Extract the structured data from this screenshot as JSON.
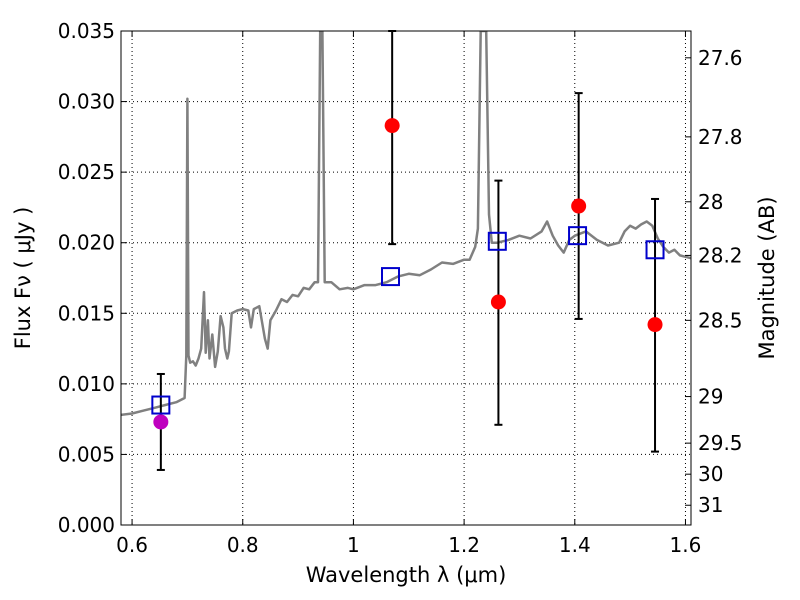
{
  "chart_data": {
    "type": "scatter",
    "xlabel": "Wavelength  λ (μm)",
    "ylabel": "Flux  Fν  ( μJy )",
    "ylabel_right": "Magnitude (AB)",
    "xlim": [
      0.58,
      1.61
    ],
    "ylim": [
      0.0,
      0.035
    ],
    "grid": true,
    "x_ticks": [
      0.6,
      0.8,
      1.0,
      1.2,
      1.4,
      1.6
    ],
    "x_tick_labels": [
      "0.6",
      "0.8",
      "1",
      "1.2",
      "1.4",
      "1.6"
    ],
    "y_ticks": [
      0.0,
      0.005,
      0.01,
      0.015,
      0.02,
      0.025,
      0.03,
      0.035
    ],
    "y_tick_labels": [
      "0.000",
      "0.005",
      "0.010",
      "0.015",
      "0.020",
      "0.025",
      "0.030",
      "0.035"
    ],
    "right_ticks": [
      {
        "label": "27.6",
        "flux": 0.0331
      },
      {
        "label": "27.8",
        "flux": 0.0275
      },
      {
        "label": "28",
        "flux": 0.0229
      },
      {
        "label": "28.2",
        "flux": 0.0191
      },
      {
        "label": "28.5",
        "flux": 0.0145
      },
      {
        "label": "29",
        "flux": 0.0091
      },
      {
        "label": "29.5",
        "flux": 0.0058
      },
      {
        "label": "30",
        "flux": 0.0036
      },
      {
        "label": "31",
        "flux": 0.0014
      }
    ],
    "colors": {
      "model": "#808080",
      "observed": "#ff0000",
      "observed_special": "#bf00bf",
      "model_photometry": "#0000cc",
      "errorbar": "#000000",
      "grid": "#000000"
    },
    "series": [
      {
        "type": "line",
        "points": [
          [
            0.58,
            0.0078
          ],
          [
            0.6,
            0.0079
          ],
          [
            0.62,
            0.0081
          ],
          [
            0.64,
            0.0083
          ],
          [
            0.66,
            0.0085
          ],
          [
            0.68,
            0.0087
          ],
          [
            0.695,
            0.009
          ],
          [
            0.698,
            0.012
          ],
          [
            0.7,
            0.0302
          ],
          [
            0.702,
            0.012
          ],
          [
            0.705,
            0.0115
          ],
          [
            0.71,
            0.0116
          ],
          [
            0.715,
            0.0113
          ],
          [
            0.72,
            0.0118
          ],
          [
            0.725,
            0.0125
          ],
          [
            0.73,
            0.0165
          ],
          [
            0.733,
            0.0122
          ],
          [
            0.737,
            0.0145
          ],
          [
            0.74,
            0.0118
          ],
          [
            0.745,
            0.0135
          ],
          [
            0.75,
            0.0112
          ],
          [
            0.755,
            0.0123
          ],
          [
            0.76,
            0.0148
          ],
          [
            0.765,
            0.014
          ],
          [
            0.768,
            0.0125
          ],
          [
            0.772,
            0.0118
          ],
          [
            0.775,
            0.0123
          ],
          [
            0.78,
            0.015
          ],
          [
            0.79,
            0.0152
          ],
          [
            0.8,
            0.0153
          ],
          [
            0.81,
            0.0152
          ],
          [
            0.815,
            0.014
          ],
          [
            0.82,
            0.0153
          ],
          [
            0.83,
            0.0155
          ],
          [
            0.84,
            0.0132
          ],
          [
            0.845,
            0.0125
          ],
          [
            0.85,
            0.0145
          ],
          [
            0.86,
            0.0152
          ],
          [
            0.87,
            0.016
          ],
          [
            0.88,
            0.0158
          ],
          [
            0.89,
            0.0163
          ],
          [
            0.9,
            0.0162
          ],
          [
            0.91,
            0.0168
          ],
          [
            0.92,
            0.0167
          ],
          [
            0.93,
            0.0172
          ],
          [
            0.936,
            0.0172
          ],
          [
            0.94,
            0.035
          ],
          [
            0.944,
            0.035
          ],
          [
            0.948,
            0.0172
          ],
          [
            0.96,
            0.0172
          ],
          [
            0.975,
            0.0167
          ],
          [
            0.99,
            0.0168
          ],
          [
            1.0,
            0.0167
          ],
          [
            1.02,
            0.017
          ],
          [
            1.04,
            0.017
          ],
          [
            1.06,
            0.0172
          ],
          [
            1.08,
            0.0176
          ],
          [
            1.1,
            0.0178
          ],
          [
            1.12,
            0.0177
          ],
          [
            1.14,
            0.0181
          ],
          [
            1.16,
            0.0186
          ],
          [
            1.18,
            0.0185
          ],
          [
            1.2,
            0.0188
          ],
          [
            1.21,
            0.0188
          ],
          [
            1.22,
            0.0197
          ],
          [
            1.225,
            0.021
          ],
          [
            1.23,
            0.035
          ],
          [
            1.24,
            0.035
          ],
          [
            1.245,
            0.022
          ],
          [
            1.25,
            0.02
          ],
          [
            1.26,
            0.02
          ],
          [
            1.28,
            0.0202
          ],
          [
            1.3,
            0.0205
          ],
          [
            1.32,
            0.0203
          ],
          [
            1.34,
            0.0208
          ],
          [
            1.35,
            0.0215
          ],
          [
            1.36,
            0.0205
          ],
          [
            1.37,
            0.0198
          ],
          [
            1.38,
            0.0193
          ],
          [
            1.39,
            0.0202
          ],
          [
            1.4,
            0.0205
          ],
          [
            1.42,
            0.0208
          ],
          [
            1.44,
            0.0202
          ],
          [
            1.46,
            0.0198
          ],
          [
            1.48,
            0.02
          ],
          [
            1.49,
            0.0208
          ],
          [
            1.5,
            0.0212
          ],
          [
            1.51,
            0.021
          ],
          [
            1.52,
            0.0213
          ],
          [
            1.53,
            0.0215
          ],
          [
            1.54,
            0.0212
          ],
          [
            1.55,
            0.0203
          ],
          [
            1.56,
            0.0197
          ],
          [
            1.57,
            0.0193
          ],
          [
            1.58,
            0.0195
          ],
          [
            1.59,
            0.0191
          ],
          [
            1.6,
            0.019
          ],
          [
            1.61,
            0.0189
          ]
        ]
      },
      {
        "type": "markers-open-square",
        "points": [
          [
            0.652,
            0.0085
          ],
          [
            1.067,
            0.0176
          ],
          [
            1.26,
            0.0201
          ],
          [
            1.405,
            0.0205
          ],
          [
            1.545,
            0.0195
          ]
        ]
      },
      {
        "type": "markers-filled-circle",
        "points": [
          {
            "x": 0.652,
            "y": 0.0073,
            "ylo": 0.0039,
            "yhi": 0.0107,
            "special": true
          },
          {
            "x": 1.07,
            "y": 0.0283,
            "ylo": 0.0199,
            "yhi": 0.035,
            "special": false
          },
          {
            "x": 1.262,
            "y": 0.0158,
            "ylo": 0.0071,
            "yhi": 0.0244,
            "special": false
          },
          {
            "x": 1.407,
            "y": 0.0226,
            "ylo": 0.0146,
            "yhi": 0.0306,
            "special": false
          },
          {
            "x": 1.545,
            "y": 0.0142,
            "ylo": 0.0052,
            "yhi": 0.0231,
            "special": false
          }
        ]
      }
    ]
  }
}
